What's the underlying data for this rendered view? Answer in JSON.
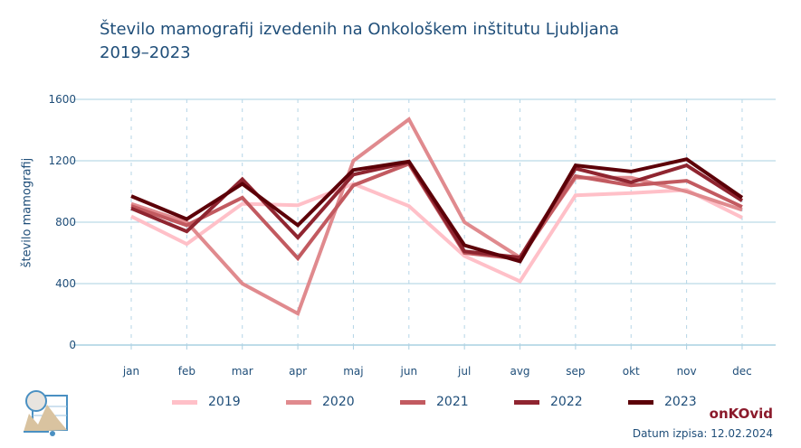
{
  "chart_data": {
    "type": "line",
    "title": "Število mamografij izvedenih na Onkološkem inštitutu Ljubljana",
    "subtitle": "2019–2023",
    "xlabel": "",
    "ylabel": "število mamografij",
    "ylim": [
      0,
      1600
    ],
    "yticks": [
      0,
      400,
      800,
      1200,
      1600
    ],
    "categories": [
      "jan",
      "feb",
      "mar",
      "apr",
      "maj",
      "jun",
      "jul",
      "avg",
      "sep",
      "okt",
      "nov",
      "dec"
    ],
    "grid": true,
    "legend": "bottom",
    "series": [
      {
        "name": "2019",
        "color": "#ffc0c8",
        "values": [
          838,
          658,
          920,
          910,
          1050,
          905,
          580,
          415,
          975,
          990,
          1010,
          830
        ]
      },
      {
        "name": "2020",
        "color": "#e08a8e",
        "values": [
          920,
          800,
          400,
          205,
          1200,
          1470,
          800,
          570,
          1090,
          1090,
          1000,
          880
        ]
      },
      {
        "name": "2021",
        "color": "#c25a60",
        "values": [
          905,
          780,
          960,
          565,
          1040,
          1180,
          600,
          560,
          1100,
          1040,
          1070,
          900
        ]
      },
      {
        "name": "2022",
        "color": "#8f2530",
        "values": [
          890,
          740,
          1080,
          700,
          1110,
          1190,
          610,
          570,
          1150,
          1060,
          1170,
          940
        ]
      },
      {
        "name": "2023",
        "color": "#5c0008",
        "values": [
          970,
          820,
          1050,
          780,
          1140,
          1195,
          650,
          545,
          1170,
          1130,
          1210,
          960
        ]
      }
    ]
  },
  "footer": {
    "brand": "onKOvid",
    "date": "Datum izpisa: 12.02.2024"
  }
}
